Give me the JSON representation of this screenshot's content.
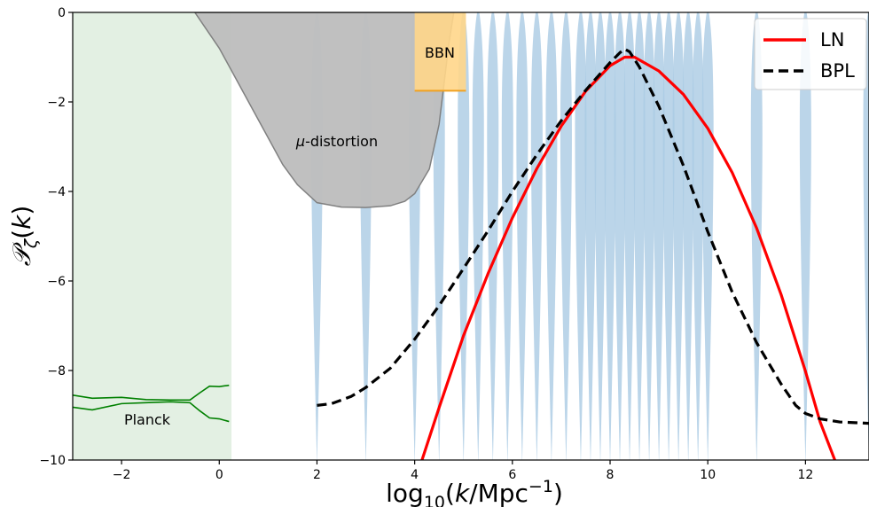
{
  "chart_data": {
    "type": "line",
    "title": "",
    "xlabel": "log10(k/Mpc^-1)",
    "ylabel": "P_zeta(k)",
    "xlim": [
      -3,
      13.3
    ],
    "ylim": [
      -10,
      0
    ],
    "x_ticks": [
      -2,
      0,
      2,
      4,
      6,
      8,
      10,
      12
    ],
    "y_ticks": [
      0,
      -2,
      -4,
      -6,
      -8,
      -10
    ],
    "x_tick_labels": [
      "−2",
      "0",
      "2",
      "4",
      "6",
      "8",
      "10",
      "12"
    ],
    "y_tick_labels": [
      "0",
      "−2",
      "−4",
      "−6",
      "−8",
      "−10"
    ],
    "grid": false,
    "legend_position": "top-right",
    "series": [
      {
        "name": "LN",
        "color": "#ff0000",
        "style": "solid",
        "x": [
          4.15,
          4.5,
          5.0,
          5.5,
          6.0,
          6.5,
          7.0,
          7.5,
          8.0,
          8.3,
          8.5,
          9.0,
          9.5,
          10.0,
          10.5,
          11.0,
          11.5,
          12.0,
          12.3,
          12.6
        ],
        "y": [
          -10.0,
          -8.83,
          -7.22,
          -5.84,
          -4.59,
          -3.49,
          -2.54,
          -1.76,
          -1.19,
          -1.0,
          -1.0,
          -1.31,
          -1.83,
          -2.59,
          -3.58,
          -4.82,
          -6.3,
          -8.02,
          -9.15,
          -10.0
        ]
      },
      {
        "name": "BPL",
        "color": "#000000",
        "style": "dashed",
        "x": [
          2.0,
          2.3,
          2.7,
          3.0,
          3.5,
          4.0,
          4.5,
          5.0,
          5.5,
          6.0,
          6.5,
          7.0,
          7.5,
          8.0,
          8.2,
          8.3,
          8.4,
          8.6,
          9.0,
          9.5,
          10.0,
          10.5,
          11.0,
          11.5,
          11.8,
          12.0,
          12.3,
          12.7,
          13.3
        ],
        "y": [
          -8.78,
          -8.74,
          -8.58,
          -8.38,
          -7.95,
          -7.3,
          -6.55,
          -5.72,
          -4.88,
          -4.0,
          -3.18,
          -2.42,
          -1.74,
          -1.12,
          -0.9,
          -0.82,
          -0.88,
          -1.22,
          -2.1,
          -3.42,
          -4.9,
          -6.25,
          -7.38,
          -8.3,
          -8.78,
          -8.96,
          -9.08,
          -9.15,
          -9.18
        ]
      }
    ],
    "regions": [
      {
        "name": "Planck",
        "color": "#d9ebd9",
        "x_range": [
          -3,
          0.25
        ],
        "y_range": [
          -10,
          0
        ]
      },
      {
        "name": "μ-distortion",
        "color": "#bebebe",
        "edge_color": "#808080"
      },
      {
        "name": "BBN",
        "color": "#ffd68a",
        "edge_color": "#f0a020",
        "x_range": [
          4.0,
          5.05
        ],
        "y_range": [
          -1.75,
          0
        ]
      },
      {
        "name": "PTA oscillations",
        "color": "#aacbe3"
      }
    ],
    "planck_bounds": {
      "color": "#008000",
      "upper": {
        "x": [
          -3.0,
          -2.6,
          -2.0,
          -1.5,
          -1.0,
          -0.6,
          -0.4,
          -0.2,
          0.0,
          0.2
        ],
        "y": [
          -8.55,
          -8.62,
          -8.6,
          -8.65,
          -8.66,
          -8.66,
          -8.5,
          -8.35,
          -8.36,
          -8.33
        ]
      },
      "lower": {
        "x": [
          -3.0,
          -2.6,
          -2.0,
          -1.5,
          -1.0,
          -0.6,
          -0.4,
          -0.2,
          0.0,
          0.2
        ],
        "y": [
          -8.82,
          -8.88,
          -8.74,
          -8.72,
          -8.7,
          -8.72,
          -8.9,
          -9.06,
          -9.08,
          -9.14
        ]
      }
    },
    "mu_distortion_boundary": {
      "x": [
        -0.5,
        0.0,
        0.5,
        1.0,
        1.3,
        1.6,
        2.0,
        2.5,
        3.0,
        3.5,
        3.8,
        4.0,
        4.3,
        4.5,
        4.6,
        4.7,
        4.8
      ],
      "y": [
        0.0,
        -0.8,
        -1.8,
        -2.8,
        -3.4,
        -3.85,
        -4.25,
        -4.35,
        -4.36,
        -4.32,
        -4.22,
        -4.05,
        -3.5,
        -2.5,
        -1.6,
        -0.7,
        0.0
      ]
    },
    "oscillation_peaks_x": [
      2,
      3,
      4,
      4.5,
      5,
      5.3,
      5.6,
      5.9,
      6.2,
      6.5,
      6.8,
      7.1,
      7.4,
      7.6,
      7.8,
      8.0,
      8.2,
      8.4,
      8.6,
      8.8,
      9.0,
      9.2,
      9.4,
      9.6,
      9.8,
      10.0,
      11,
      12,
      13.3
    ],
    "annotations": [
      {
        "text": "Planck",
        "x": -1.5,
        "y": -9.1
      },
      {
        "text": "μ-distortion",
        "x": 2.4,
        "y": -2.9
      },
      {
        "text": "BBN",
        "x": 4.55,
        "y": -0.9
      }
    ]
  },
  "legend": {
    "items": [
      {
        "label": "LN",
        "color": "#ff0000",
        "dash": "solid"
      },
      {
        "label": "BPL",
        "color": "#000000",
        "dash": "dashed"
      }
    ]
  },
  "labels": {
    "planck": "Planck",
    "mu_distortion": "-distortion",
    "mu_symbol": "μ",
    "bbn": "BBN"
  }
}
